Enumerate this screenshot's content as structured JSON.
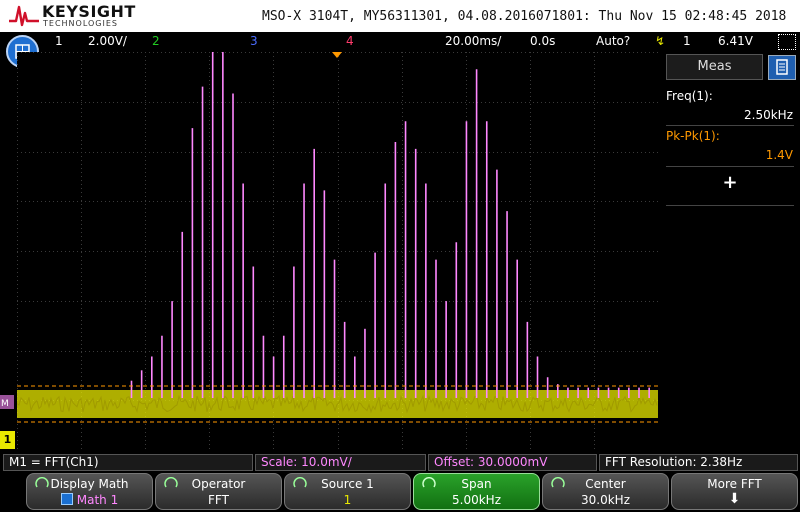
{
  "header": {
    "brand": "KEYSIGHT",
    "brand_sub": "TECHNOLOGIES",
    "device_info": "MSO-X 3104T, MY56311301, 04.08.2016071801: Thu Nov 15 02:48:45 2018"
  },
  "status": {
    "ch1_num": "1",
    "ch1_scale": "2.00V/",
    "ch2_num": "2",
    "ch3_num": "3",
    "ch4_num": "4",
    "timebase": "20.00ms/",
    "delay": "0.0s",
    "trigger_mode": "Auto?",
    "trigger_source": "1",
    "trigger_level": "6.41V"
  },
  "meas": {
    "tab_label": "Meas",
    "freq_label": "Freq(1):",
    "freq_value": "2.50kHz",
    "pkpk_label": "Pk-Pk(1):",
    "pkpk_value": "1.4V",
    "add_label": "+"
  },
  "markers": {
    "ch1": "1"
  },
  "info": {
    "math_def": "M1 = FFT(Ch1)",
    "scale": "Scale: 10.0mV/",
    "offset": "Offset: 30.0000mV",
    "fft_resolution": "FFT Resolution: 2.38Hz"
  },
  "softkeys": [
    {
      "label": "Display Math",
      "value": "Math 1"
    },
    {
      "label": "Operator",
      "value": "FFT"
    },
    {
      "label": "Source 1",
      "value": "1"
    },
    {
      "label": "Span",
      "value": "5.00kHz"
    },
    {
      "label": "Center",
      "value": "30.0kHz"
    },
    {
      "label": "More FFT",
      "value": ""
    }
  ],
  "colors": {
    "ch1": "#e8e800",
    "ch2": "#22cc22",
    "ch3": "#4a6cff",
    "ch4": "#ff3b6b",
    "math": "#ff88ff",
    "trigger": "#ff9900",
    "meas_label": "#ff9900",
    "softkey_active": "#1e8a1e"
  }
}
